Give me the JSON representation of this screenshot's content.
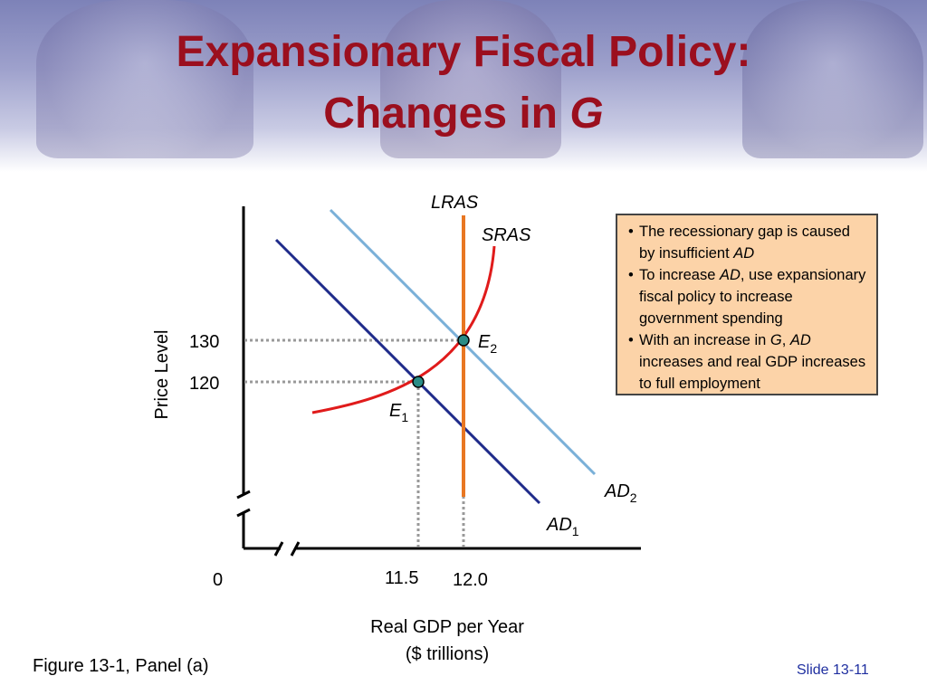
{
  "slide": {
    "title_line1": "Expansionary Fiscal Policy:",
    "title_line2_prefix": "Changes in ",
    "title_line2_italic": "G",
    "figure_caption": "Figure 13-1, Panel (a)",
    "slide_number": "Slide 13-11"
  },
  "info_box": {
    "bullets": [
      [
        "The recessionary gap is caused by insufficient ",
        {
          "i": "AD"
        }
      ],
      [
        "To increase ",
        {
          "i": "AD"
        },
        ", use expansionary fiscal policy to increase government spending"
      ],
      [
        "With an increase in ",
        {
          "i": "G"
        },
        ", ",
        {
          "i": "AD"
        },
        " increases and real GDP increases to full employment"
      ]
    ]
  },
  "chart_data": {
    "type": "line",
    "xlabel_line1": "Real GDP per Year",
    "xlabel_line2": "($ trillions)",
    "ylabel": "Price Level",
    "origin_label": "0",
    "x_ticks": [
      {
        "value": 11.5,
        "label": "11.5"
      },
      {
        "value": 12.0,
        "label": "12.0"
      }
    ],
    "y_ticks": [
      {
        "value": 130,
        "label": "130"
      },
      {
        "value": 120,
        "label": "120"
      }
    ],
    "curve_labels": {
      "lras": "LRAS",
      "sras": "SRAS",
      "ad1": {
        "main": "AD",
        "sub": "1"
      },
      "ad2": {
        "main": "AD",
        "sub": "2"
      }
    },
    "points": [
      {
        "name": "E1",
        "main": "E",
        "sub": "1",
        "x": 11.5,
        "y": 120
      },
      {
        "name": "E2",
        "main": "E",
        "sub": "2",
        "x": 12.0,
        "y": 130
      }
    ],
    "colors": {
      "lras": "#e87722",
      "sras": "#e01b1b",
      "ad1": "#1f2b8a",
      "ad2": "#7ab0d8",
      "point": "#2a8c86",
      "guides": "#999999",
      "axis": "#000000"
    }
  }
}
